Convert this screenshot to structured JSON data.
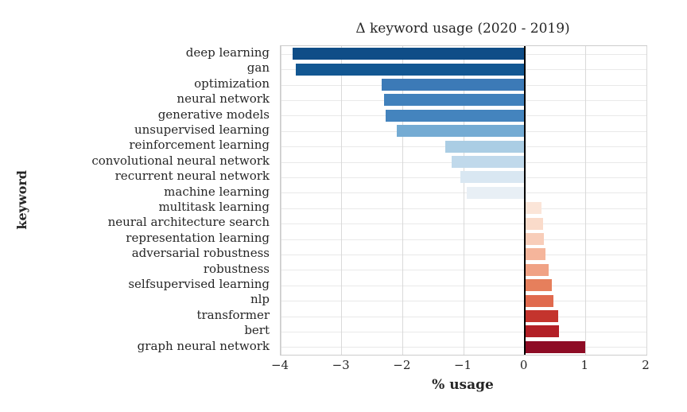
{
  "figure": {
    "background": "#ffffff",
    "text_color": "#262626",
    "grid_color": "#d9d9d9",
    "row_grid_color": "#e9e9e9",
    "plot_border_color": "#cccccc",
    "zero_line_color": "#000000"
  },
  "chart_data": {
    "type": "bar",
    "orientation": "horizontal",
    "title": "Δ keyword usage (2020 - 2019)",
    "xlabel": "% usage",
    "ylabel": "keyword",
    "xlim": [
      -4,
      2
    ],
    "xticks": [
      -4,
      -3,
      -2,
      -1,
      0,
      1,
      2
    ],
    "xtick_labels": [
      "−4",
      "−3",
      "−2",
      "−1",
      "0",
      "1",
      "2"
    ],
    "grid": true,
    "legend": false,
    "categories": [
      "deep learning",
      "gan",
      "optimization",
      "neural network",
      "generative models",
      "unsupervised learning",
      "reinforcement learning",
      "convolutional neural network",
      "recurrent neural network",
      "machine learning",
      "multitask learning",
      "neural architecture search",
      "representation learning",
      "adversarial robustness",
      "robustness",
      "selfsupervised learning",
      "nlp",
      "transformer",
      "bert",
      "graph neural network"
    ],
    "values": [
      -3.8,
      -3.75,
      -2.35,
      -2.3,
      -2.28,
      -2.1,
      -1.3,
      -1.2,
      -1.05,
      -0.95,
      0.28,
      0.3,
      0.32,
      0.35,
      0.4,
      0.45,
      0.47,
      0.55,
      0.57,
      1.0
    ],
    "bar_colors": [
      "#0f4d87",
      "#125792",
      "#3c7ab7",
      "#4181bc",
      "#4484be",
      "#74abd3",
      "#aacde4",
      "#c0d9eb",
      "#d9e7f2",
      "#e8eff5",
      "#fbe5d8",
      "#fadbca",
      "#f8cdb9",
      "#f5b59b",
      "#f0a285",
      "#e67f5c",
      "#e06a4e",
      "#c4342d",
      "#b21f26",
      "#8e0c25"
    ]
  }
}
